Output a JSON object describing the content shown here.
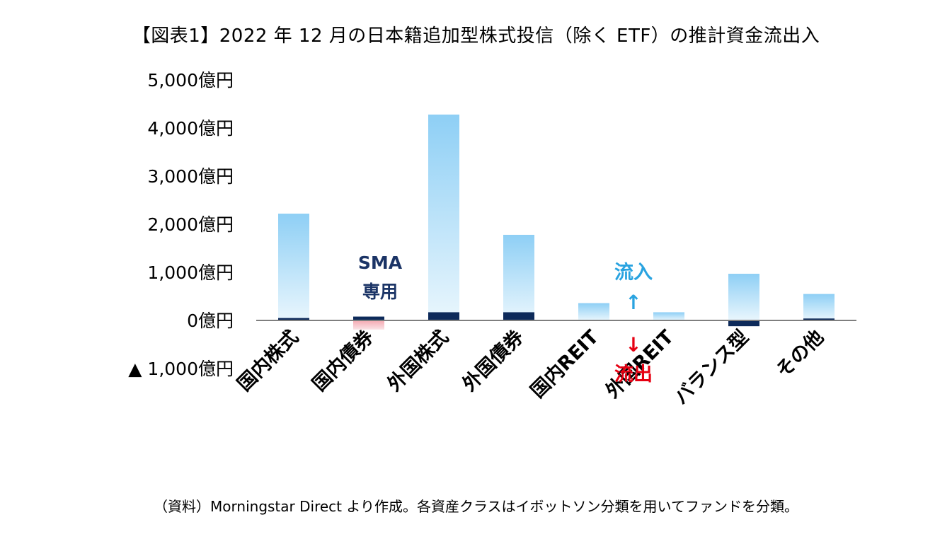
{
  "chart_data": {
    "type": "bar",
    "title": "【図表1】2022 年 12 月の日本籍追加型株式投信（除く ETF）の推計資金流出入",
    "y_tick_labels": [
      "5,000億円",
      "4,000億円",
      "3,000億円",
      "2,000億円",
      "1,000億円",
      "0億円",
      "▲ 1,000億円"
    ],
    "ylim": [
      -1000,
      5000
    ],
    "categories": [
      "国内株式",
      "国内債券",
      "外国株式",
      "外国債券",
      "国内REIT",
      "外国REIT",
      "バランス型",
      "その他"
    ],
    "series": [
      {
        "values": [
          2220,
          -190,
          4280,
          1780,
          360,
          170,
          970,
          550
        ]
      },
      {
        "values": [
          50,
          80,
          170,
          170,
          0,
          0,
          -120,
          40
        ]
      }
    ],
    "annotations": {
      "sma": [
        "SMA",
        "専用"
      ],
      "inflow_label": "流入",
      "inflow_arrow": "↑",
      "outflow_arrow": "↓",
      "outflow_label": "流出"
    },
    "source": "（資料）Morningstar Direct より作成。各資産クラスはイボットソン分類を用いてファンドを分類。",
    "colors": {
      "main_top": "#8ecff5",
      "main_bottom": "#e9f6fd",
      "sma": "#0d2a5a",
      "negative_top": "#f4a9b1",
      "negative_bottom": "#fbe3e6",
      "sma_text": "#1b3466",
      "inflow": "#29a3e0",
      "outflow": "#e60012",
      "axis": "#7f7f7f"
    }
  }
}
